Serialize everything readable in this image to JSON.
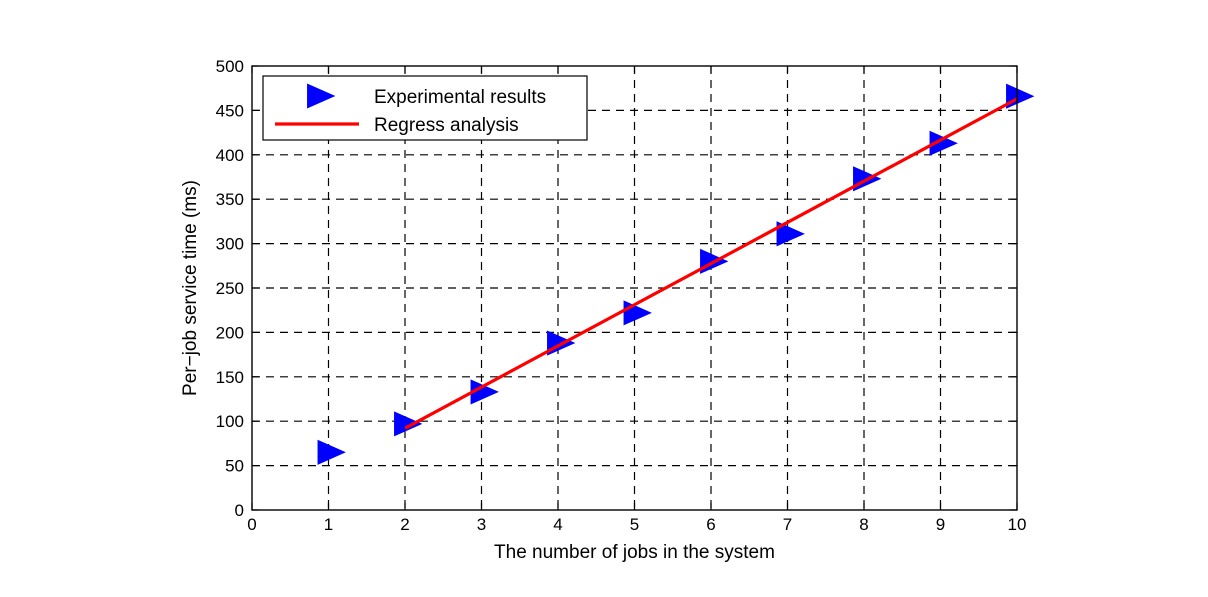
{
  "chart_data": {
    "type": "scatter",
    "title": "",
    "xlabel": "The number of jobs in the system",
    "ylabel": "Per−job service time (ms)",
    "xlim": [
      0,
      10
    ],
    "ylim": [
      0,
      500
    ],
    "xticks": [
      "0",
      "1",
      "2",
      "3",
      "4",
      "5",
      "6",
      "7",
      "8",
      "9",
      "10"
    ],
    "yticks": [
      "0",
      "50",
      "100",
      "150",
      "200",
      "250",
      "300",
      "350",
      "400",
      "450",
      "500"
    ],
    "grid": true,
    "legend_position": "top-left",
    "series": [
      {
        "name": "Experimental results",
        "kind": "scatter",
        "marker": "triangle-right",
        "color": "#0000ff",
        "x": [
          1,
          2,
          3,
          4,
          5,
          6,
          7,
          8,
          9,
          10
        ],
        "y": [
          65,
          97,
          133,
          188,
          222,
          280,
          311,
          373,
          413,
          466
        ]
      },
      {
        "name": "Regress analysis",
        "kind": "line",
        "color": "#ff0000",
        "x": [
          2,
          10
        ],
        "y": [
          92,
          463
        ]
      }
    ]
  }
}
